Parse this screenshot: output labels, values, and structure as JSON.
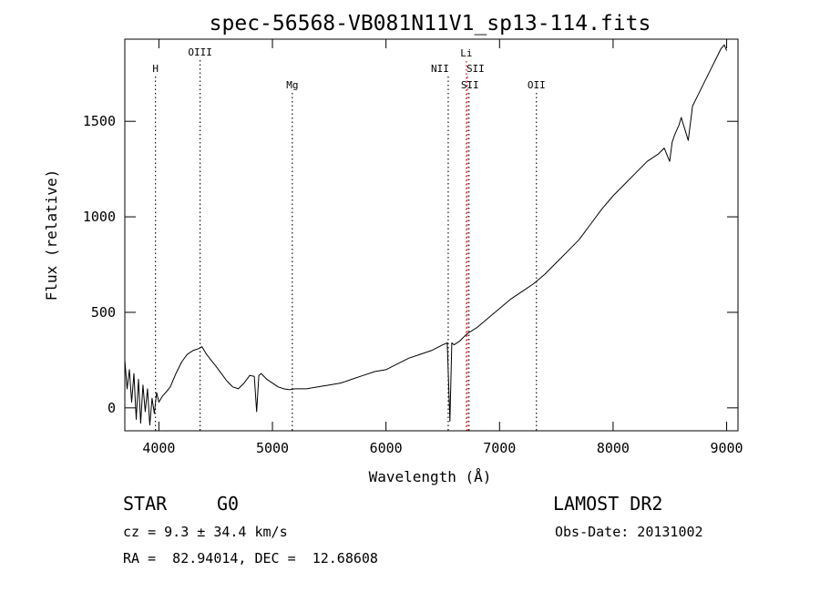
{
  "chart_data": {
    "type": "line",
    "title": "spec-56568-VB081N11V1_sp13-114.fits",
    "xlabel": "Wavelength (Å)",
    "ylabel": "Flux (relative)",
    "xlim": [
      3700,
      9100
    ],
    "ylim": [
      -120,
      1930
    ],
    "xticks": [
      4000,
      5000,
      6000,
      7000,
      8000,
      9000
    ],
    "yticks": [
      0,
      500,
      1000,
      1500
    ],
    "grid": false,
    "line_color": "#000000",
    "series": [
      {
        "x": [
          3700,
          3720,
          3740,
          3760,
          3780,
          3800,
          3820,
          3840,
          3860,
          3880,
          3900,
          3920,
          3940,
          3960,
          3980,
          4000,
          4030,
          4060,
          4100,
          4150,
          4200,
          4250,
          4300,
          4350,
          4380,
          4420,
          4460,
          4500,
          4550,
          4600,
          4650,
          4700,
          4750,
          4800,
          4840,
          4861,
          4880,
          4900,
          4950,
          5000,
          5050,
          5100,
          5150,
          5200,
          5300,
          5400,
          5500,
          5600,
          5700,
          5800,
          5900,
          6000,
          6100,
          6200,
          6300,
          6400,
          6500,
          6540,
          6563,
          6580,
          6600,
          6650,
          6700,
          6720,
          6800,
          6900,
          7000,
          7100,
          7200,
          7300,
          7400,
          7500,
          7600,
          7700,
          7800,
          7900,
          8000,
          8100,
          8200,
          8300,
          8400,
          8450,
          8498,
          8520,
          8542,
          8580,
          8600,
          8662,
          8700,
          8750,
          8800,
          8850,
          8900,
          8950,
          8980,
          9000
        ],
        "y": [
          250,
          100,
          200,
          30,
          180,
          -60,
          150,
          -80,
          120,
          -20,
          100,
          -90,
          50,
          -30,
          80,
          30,
          60,
          80,
          110,
          180,
          240,
          280,
          300,
          310,
          320,
          280,
          250,
          220,
          180,
          140,
          110,
          100,
          130,
          170,
          165,
          -20,
          170,
          180,
          150,
          130,
          110,
          100,
          95,
          100,
          100,
          110,
          120,
          130,
          150,
          170,
          190,
          200,
          230,
          260,
          280,
          300,
          330,
          340,
          -70,
          340,
          330,
          350,
          380,
          390,
          420,
          470,
          520,
          570,
          610,
          650,
          700,
          760,
          820,
          880,
          960,
          1040,
          1110,
          1170,
          1230,
          1290,
          1330,
          1360,
          1290,
          1390,
          1430,
          1480,
          1520,
          1400,
          1580,
          1640,
          1700,
          1760,
          1820,
          1880,
          1900,
          1870
        ]
      }
    ],
    "lines": [
      {
        "label": "H",
        "x": 3970,
        "color": "#000000"
      },
      {
        "label": "OIII",
        "x": 4363,
        "color": "#000000"
      },
      {
        "label": "Mg",
        "x": 5175,
        "color": "#000000"
      },
      {
        "label": "NII",
        "x": 6548,
        "color": "#000000"
      },
      {
        "label": "Li",
        "x": 6708,
        "color": "#cc0000"
      },
      {
        "label": "SII",
        "x": 6716,
        "color": "#cc0000"
      },
      {
        "label": "SII",
        "x": 6731,
        "color": "#000000"
      },
      {
        "label": "OII",
        "x": 7325,
        "color": "#000000"
      }
    ]
  },
  "info": {
    "class_label": "STAR",
    "subclass": "G0",
    "survey": "LAMOST DR2",
    "redshift": "cz = 9.3 ± 34.4 km/s",
    "obs_date": "Obs-Date: 20131002",
    "coords": "RA =  82.94014, DEC =  12.68608"
  }
}
